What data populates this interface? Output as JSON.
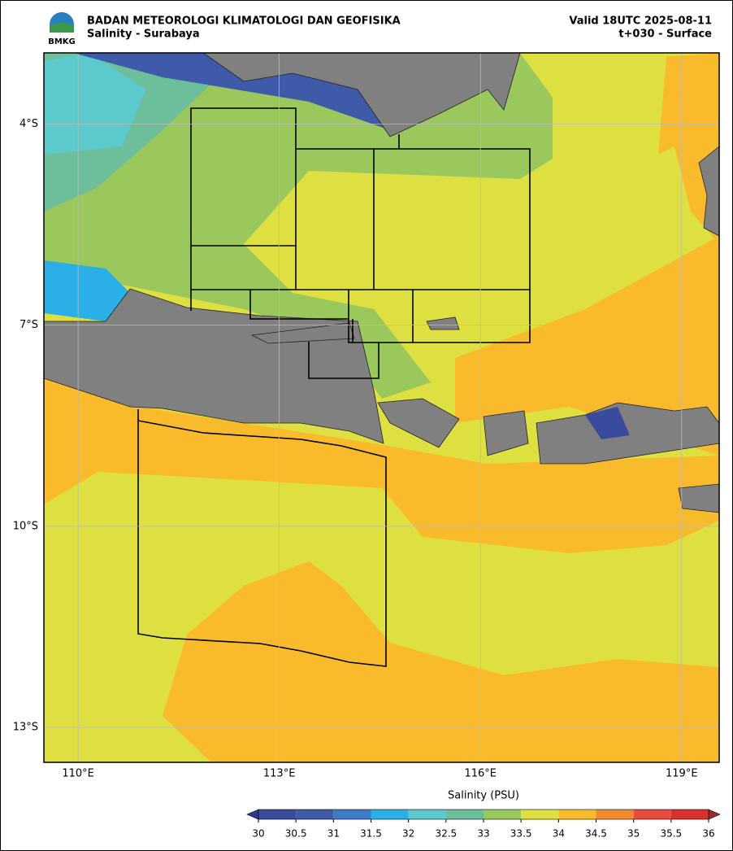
{
  "header": {
    "agency": "BADAN METEOROLOGI KLIMATOLOGI DAN GEOFISIKA",
    "subtitle": "Salinity - Surabaya",
    "valid": "Valid 18UTC 2025-08-11",
    "step": "t+030 - Surface",
    "logo": "BMKG"
  },
  "map": {
    "xlim": [
      109.49,
      119.56
    ],
    "ylim": [
      -13.52,
      -2.94
    ],
    "xticks": [
      {
        "value": 110,
        "label": "110°E"
      },
      {
        "value": 113,
        "label": "113°E"
      },
      {
        "value": 116,
        "label": "116°E"
      },
      {
        "value": 119,
        "label": "119°E"
      }
    ],
    "yticks": [
      {
        "value": -4,
        "label": "4°S"
      },
      {
        "value": -7,
        "label": "7°S"
      },
      {
        "value": -10,
        "label": "10°S"
      },
      {
        "value": -13,
        "label": "13°S"
      }
    ],
    "grid": true
  },
  "colorbar": {
    "label": "Salinity (PSU)",
    "ticks": [
      30,
      30.5,
      31,
      31.5,
      32,
      32.5,
      33,
      33.5,
      34,
      34.5,
      35,
      35.5,
      36
    ],
    "colors": [
      "#3a4a9c",
      "#3e5aa8",
      "#3f7bc4",
      "#2ab0e6",
      "#5cc9cc",
      "#6cbf9a",
      "#9ac85c",
      "#dde040",
      "#f9bb2c",
      "#f08b30",
      "#e84c3c",
      "#d93030"
    ],
    "under": "#2e3a8c",
    "over": "#a02828"
  }
}
